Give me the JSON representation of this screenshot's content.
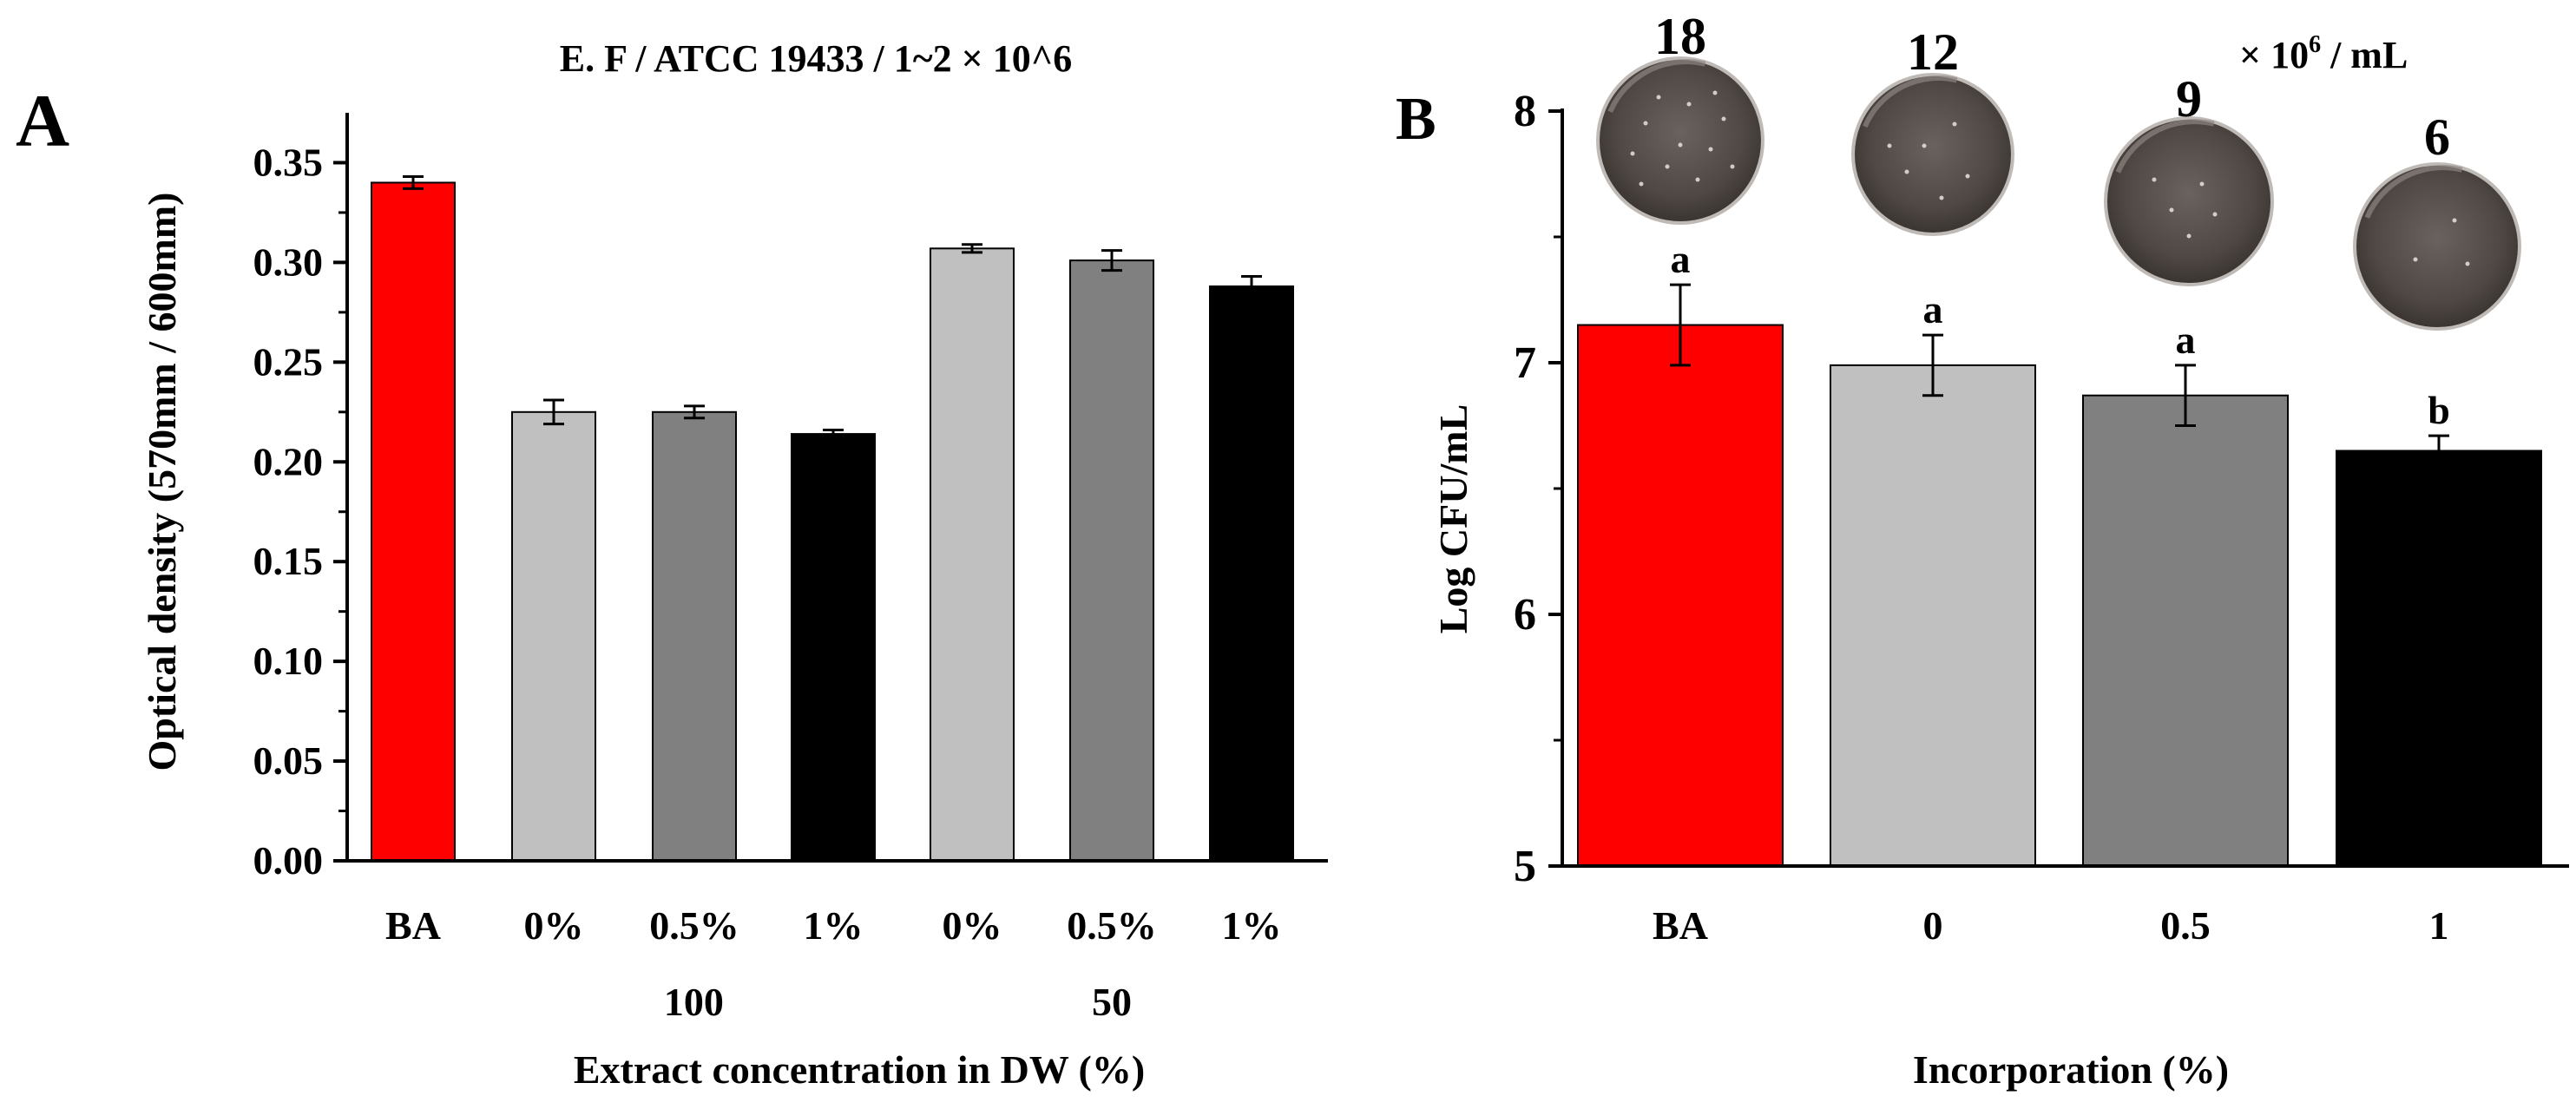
{
  "chart_data": [
    {
      "panel_label": "A",
      "type": "bar",
      "title": "E. F / ATCC 19433 / 1~2 × 10^6",
      "xlabel": "Extract concentration in DW (%)",
      "ylabel": "Optical density (570mm / 600mm)",
      "ylim": [
        0,
        0.375
      ],
      "yticks": [
        "0.00",
        "0.05",
        "0.10",
        "0.15",
        "0.20",
        "0.25",
        "0.30",
        "0.35"
      ],
      "categories": [
        "BA",
        "0%",
        "0.5%",
        "1%",
        "0%",
        "0.5%",
        "1%"
      ],
      "groups": [
        {
          "label": "100",
          "categories": [
            1,
            2,
            3
          ]
        },
        {
          "label": "50",
          "categories": [
            4,
            5,
            6
          ]
        }
      ],
      "values": [
        0.34,
        0.225,
        0.225,
        0.214,
        0.307,
        0.301,
        0.288
      ],
      "errors": [
        0.003,
        0.006,
        0.003,
        0.002,
        0.002,
        0.005,
        0.005
      ],
      "colors": [
        "#ff0000",
        "#c0c0c0",
        "#808080",
        "#000000",
        "#c0c0c0",
        "#808080",
        "#000000"
      ],
      "grid": false,
      "legend": "none"
    },
    {
      "panel_label": "B",
      "type": "bar",
      "title": "",
      "xlabel": "Incorporation (%)",
      "ylabel": "Log CFU/mL",
      "ylim": [
        5,
        8
      ],
      "yticks": [
        "5",
        "6",
        "7",
        "8"
      ],
      "categories": [
        "BA",
        "0",
        "0.5",
        "1"
      ],
      "values": [
        7.15,
        6.99,
        6.87,
        6.65
      ],
      "errors": [
        0.16,
        0.12,
        0.12,
        0.06
      ],
      "significance": [
        "a",
        "a",
        "a",
        "b"
      ],
      "colors": [
        "#ff0000",
        "#c0c0c0",
        "#808080",
        "#000000"
      ],
      "plate_counts": [
        "18",
        "12",
        "9",
        "6"
      ],
      "plate_unit_base": "× 10",
      "plate_unit_exp": "6",
      "plate_unit_suffix": " / mL",
      "grid": false,
      "legend": "none"
    }
  ]
}
